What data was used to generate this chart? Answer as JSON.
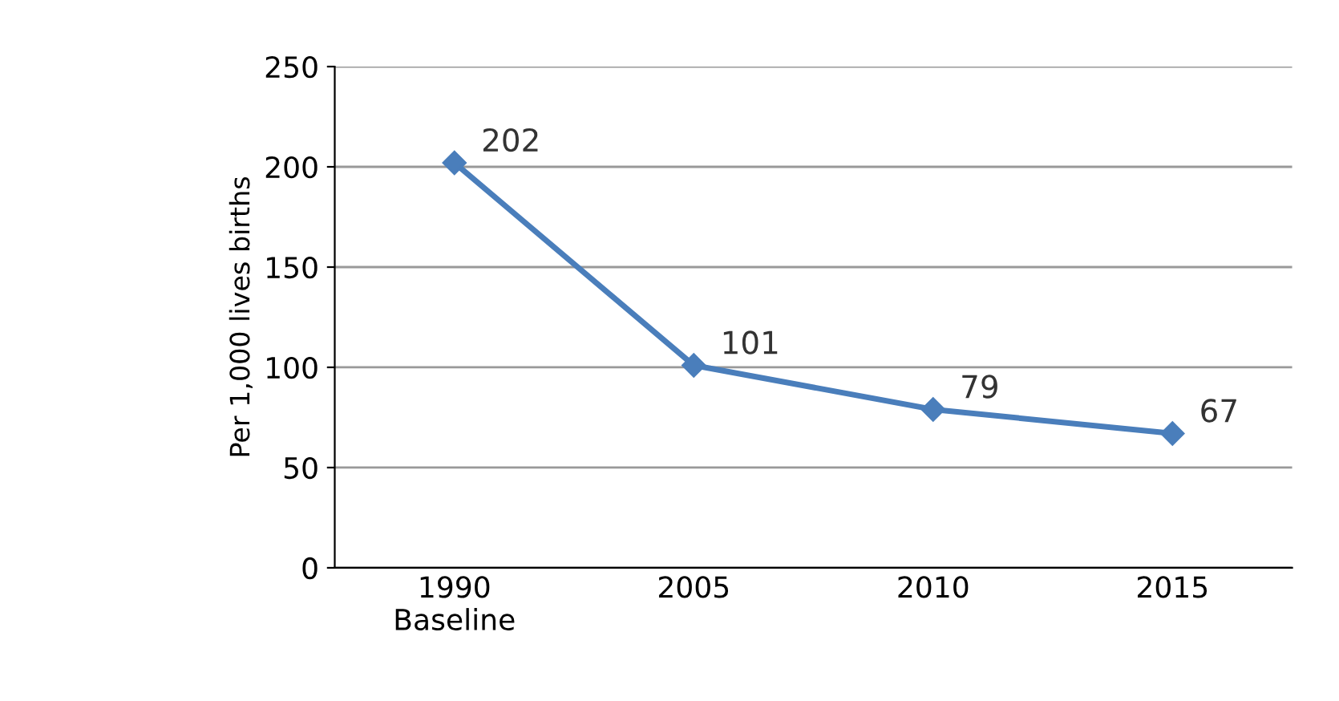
{
  "chart_data": {
    "type": "line",
    "ylabel": "Per 1,000 lives births",
    "categories": [
      "1990\nBaseline",
      "2005",
      "2010",
      "2015"
    ],
    "series": [
      {
        "color": "#4a7ebb",
        "values": [
          202,
          101,
          79,
          67
        ]
      }
    ],
    "ylim": [
      0,
      250
    ],
    "yticks": [
      0,
      50,
      100,
      150,
      200,
      250
    ],
    "grid": "y",
    "marker": "diamond",
    "line_style": "solid",
    "data_labels": true
  }
}
